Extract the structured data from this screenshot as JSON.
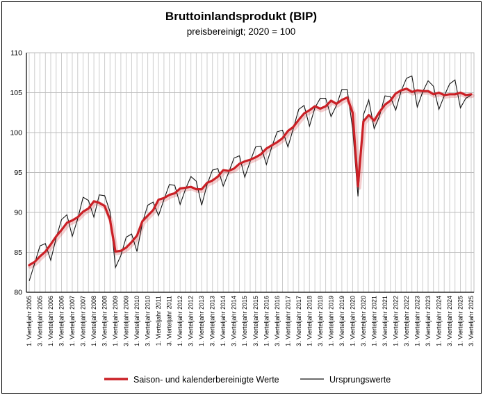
{
  "figure": {
    "title": "Bruttoinlandsprodukt (BIP)",
    "subtitle": "preisbereinigt; 2020 = 100"
  },
  "legend": {
    "adjusted_label": "Saison- und kalenderbereinigte Werte",
    "original_label": "Ursprungswerte"
  },
  "colors": {
    "adjusted_line": "#cb2026",
    "original_line": "#141414",
    "grid_vertical": "#cdcdcd",
    "grid_horizontal": "#bdbdbd",
    "axis": "#000000"
  },
  "chart_data": {
    "type": "line",
    "title": "Bruttoinlandsprodukt (BIP)",
    "subtitle": "preisbereinigt; 2020 = 100",
    "x_start": "1. Vierteljahr 2005",
    "x_end": "3. Vierteljahr 2025",
    "frequency": "quarterly",
    "ylim": [
      80,
      110
    ],
    "y_ticks": [
      80,
      85,
      90,
      95,
      100,
      105,
      110
    ],
    "grid": "both",
    "legend_position": "bottom",
    "x_tick_labels": [
      "1. Vierteljahr 2005",
      "3. Vierteljahr 2005",
      "1. Vierteljahr 2006",
      "3. Vierteljahr 2006",
      "1. Vierteljahr 2007",
      "3. Vierteljahr 2007",
      "1. Vierteljahr 2008",
      "3. Vierteljahr 2008",
      "1. Vierteljahr 2009",
      "3. Vierteljahr 2009",
      "1. Vierteljahr 2010",
      "3. Vierteljahr 2010",
      "1. Vierteljahr 2011",
      "3. Vierteljahr 2011",
      "1. Vierteljahr 2012",
      "3. Vierteljahr 2012",
      "1. Vierteljahr 2013",
      "3. Vierteljahr 2013",
      "1. Vierteljahr 2014",
      "3. Vierteljahr 2014",
      "1. Vierteljahr 2015",
      "3. Vierteljahr 2015",
      "1. Vierteljahr 2016",
      "3. Vierteljahr 2016",
      "1. Vierteljahr 2017",
      "3. Vierteljahr 2017",
      "1. Vierteljahr 2018",
      "3. Vierteljahr 2018",
      "1. Vierteljahr 2019",
      "3. Vierteljahr 2019",
      "1. Vierteljahr 2020",
      "3. Vierteljahr 2020",
      "1. Vierteljahr 2021",
      "3. Vierteljahr 2021",
      "1. Vierteljahr 2022",
      "3. Vierteljahr 2022",
      "1. Vierteljahr 2023",
      "3. Vierteljahr 2023",
      "1. Vierteljahr 2024",
      "3. Vierteljahr 2024",
      "1. Vierteljahr 2025",
      "3. Vierteljahr 2025"
    ],
    "series": [
      {
        "name": "Saison- und kalenderbereinigte Werte",
        "color": "#cb2026",
        "style": "thick-red-with-shadow",
        "values": [
          83.4,
          83.8,
          84.5,
          85.1,
          86.0,
          87.0,
          87.8,
          88.7,
          89.0,
          89.4,
          90.1,
          90.5,
          91.4,
          91.2,
          90.8,
          89.1,
          85.1,
          85.2,
          85.6,
          86.3,
          87.1,
          88.9,
          89.6,
          90.3,
          91.6,
          91.8,
          92.2,
          92.4,
          93.0,
          93.1,
          93.2,
          92.9,
          92.9,
          93.7,
          94.0,
          94.5,
          95.3,
          95.2,
          95.5,
          96.1,
          96.4,
          96.6,
          96.9,
          97.3,
          98.0,
          98.4,
          98.8,
          99.3,
          100.2,
          100.7,
          101.6,
          102.4,
          102.8,
          103.3,
          103.0,
          103.3,
          104.0,
          103.6,
          104.1,
          104.4,
          102.5,
          93.3,
          101.4,
          102.2,
          101.5,
          102.6,
          103.5,
          104.0,
          104.9,
          105.3,
          105.5,
          105.1,
          105.3,
          105.2,
          105.2,
          104.8,
          105.0,
          104.7,
          104.8,
          104.8,
          105.0,
          104.7,
          104.8
        ]
      },
      {
        "name": "Ursprungswerte",
        "color": "#141414",
        "style": "thin-black",
        "values": [
          81.4,
          83.6,
          85.8,
          86.1,
          84.0,
          86.8,
          89.1,
          89.7,
          87.0,
          89.2,
          91.9,
          91.5,
          89.4,
          92.2,
          92.1,
          90.1,
          83.1,
          84.6,
          86.9,
          87.3,
          85.1,
          88.7,
          90.9,
          91.3,
          89.6,
          91.6,
          93.5,
          93.4,
          91.0,
          92.9,
          94.5,
          93.9,
          90.9,
          93.5,
          95.3,
          95.5,
          93.3,
          95.0,
          96.8,
          97.1,
          94.4,
          96.4,
          98.2,
          98.3,
          96.0,
          98.2,
          100.1,
          100.3,
          98.2,
          100.5,
          102.9,
          103.4,
          100.8,
          103.1,
          104.3,
          104.3,
          102.0,
          103.4,
          105.4,
          105.4,
          100.5,
          92.0,
          102.2,
          104.1,
          100.5,
          102.1,
          104.6,
          104.5,
          102.8,
          105.2,
          106.8,
          107.1,
          103.2,
          105.1,
          106.5,
          105.8,
          102.9,
          104.6,
          106.1,
          106.6,
          103.1,
          104.3,
          104.7
        ]
      }
    ]
  }
}
